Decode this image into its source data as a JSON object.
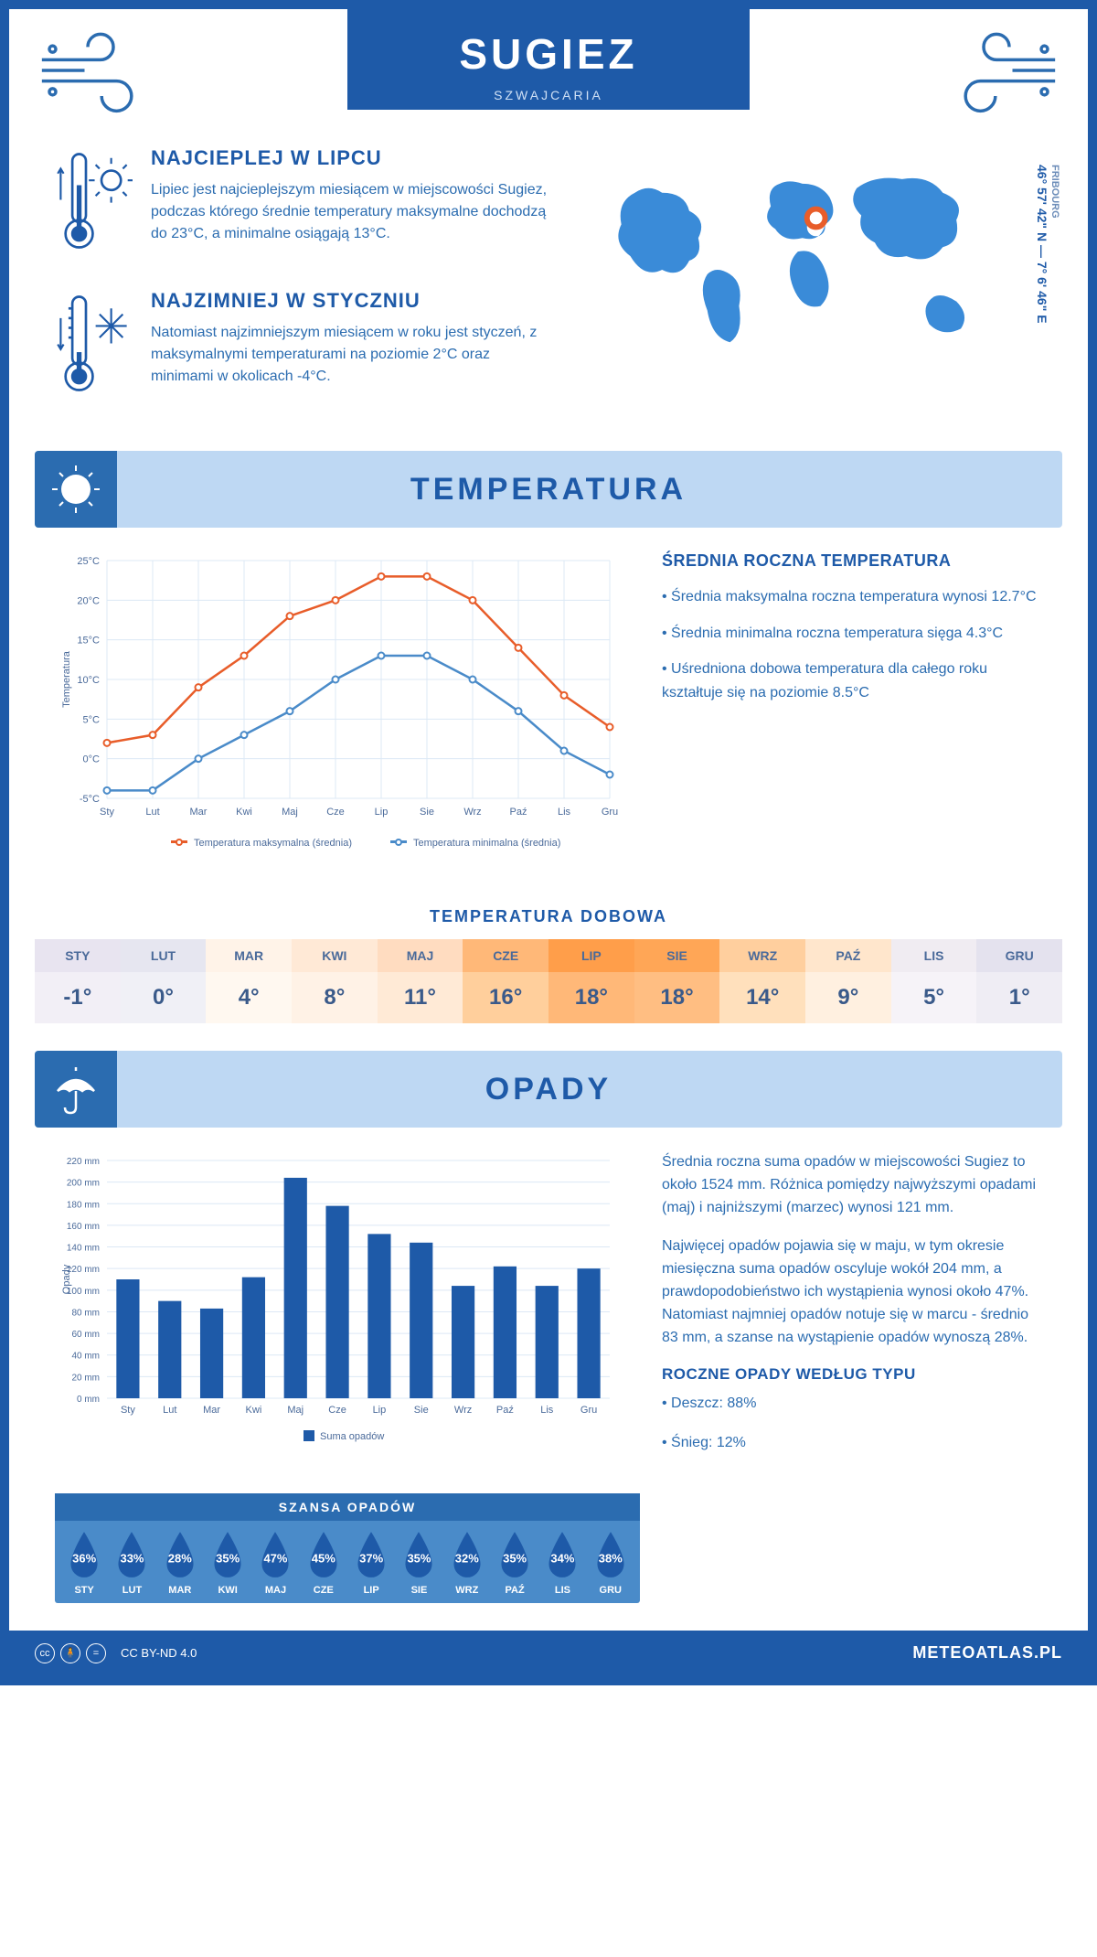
{
  "header": {
    "city": "SUGIEZ",
    "country": "SZWAJCARIA"
  },
  "coords": {
    "region": "FRIBOURG",
    "text": "46° 57' 42\" N — 7° 6' 46\" E"
  },
  "intro": {
    "warm": {
      "title": "NAJCIEPLEJ W LIPCU",
      "text": "Lipiec jest najcieplejszym miesiącem w miejscowości Sugiez, podczas którego średnie temperatury maksymalne dochodzą do 23°C, a minimalne osiągają 13°C."
    },
    "cold": {
      "title": "NAJZIMNIEJ W STYCZNIU",
      "text": "Natomiast najzimniejszym miesiącem w roku jest styczeń, z maksymalnymi temperaturami na poziomie 2°C oraz minimami w okolicach -4°C."
    }
  },
  "sections": {
    "temp": "TEMPERATURA",
    "precip": "OPADY"
  },
  "temp_chart": {
    "type": "line",
    "months": [
      "Sty",
      "Lut",
      "Mar",
      "Kwi",
      "Maj",
      "Cze",
      "Lip",
      "Sie",
      "Wrz",
      "Paź",
      "Lis",
      "Gru"
    ],
    "max_series": [
      2,
      3,
      9,
      13,
      18,
      20,
      23,
      23,
      20,
      14,
      8,
      4
    ],
    "min_series": [
      -4,
      -4,
      0,
      3,
      6,
      10,
      13,
      13,
      10,
      6,
      1,
      -2
    ],
    "ylim": [
      -5,
      25
    ],
    "ytick_step": 5,
    "ylabel": "Temperatura",
    "legend_max": "Temperatura maksymalna (średnia)",
    "legend_min": "Temperatura minimalna (średnia)",
    "color_max": "#e85d2a",
    "color_min": "#4a8bc9",
    "grid_color": "#dce8f5",
    "axis_color": "#4a6a9a",
    "label_fontsize": 11
  },
  "temp_side": {
    "title": "ŚREDNIA ROCZNA TEMPERATURA",
    "items": [
      "• Średnia maksymalna roczna temperatura wynosi 12.7°C",
      "• Średnia minimalna roczna temperatura sięga 4.3°C",
      "• Uśredniona dobowa temperatura dla całego roku kształtuje się na poziomie 8.5°C"
    ]
  },
  "daily": {
    "title": "TEMPERATURA DOBOWA",
    "months": [
      "STY",
      "LUT",
      "MAR",
      "KWI",
      "MAJ",
      "CZE",
      "LIP",
      "SIE",
      "WRZ",
      "PAŹ",
      "LIS",
      "GRU"
    ],
    "values": [
      "-1°",
      "0°",
      "4°",
      "8°",
      "11°",
      "16°",
      "18°",
      "18°",
      "14°",
      "9°",
      "5°",
      "1°"
    ],
    "bg_top": [
      "#e8e4f0",
      "#e6e6f0",
      "#fff3e8",
      "#ffe9d6",
      "#ffdcc0",
      "#ffb878",
      "#ff9e4a",
      "#ffa656",
      "#ffcf9e",
      "#ffe6cc",
      "#f0ecf2",
      "#e4e2ee"
    ],
    "bg_bot": [
      "#f2eff6",
      "#f0f0f6",
      "#fff8f0",
      "#fff2e6",
      "#ffead6",
      "#ffcf9c",
      "#ffb878",
      "#ffbe82",
      "#ffe0bc",
      "#fff0e0",
      "#f6f3f8",
      "#efedf4"
    ]
  },
  "precip_chart": {
    "type": "bar",
    "months": [
      "Sty",
      "Lut",
      "Mar",
      "Kwi",
      "Maj",
      "Cze",
      "Lip",
      "Sie",
      "Wrz",
      "Paź",
      "Lis",
      "Gru"
    ],
    "values": [
      110,
      90,
      83,
      112,
      204,
      178,
      152,
      144,
      104,
      122,
      104,
      120
    ],
    "ylim": [
      0,
      220
    ],
    "ytick_step": 20,
    "ylabel": "Opady",
    "bar_color": "#1e5aa8",
    "legend": "Suma opadów",
    "grid_color": "#dce8f5",
    "bar_width": 0.55
  },
  "precip_side": {
    "para1": "Średnia roczna suma opadów w miejscowości Sugiez to około 1524 mm. Różnica pomiędzy najwyższymi opadami (maj) i najniższymi (marzec) wynosi 121 mm.",
    "para2": "Najwięcej opadów pojawia się w maju, w tym okresie miesięczna suma opadów oscyluje wokół 204 mm, a prawdopodobieństwo ich wystąpienia wynosi około 47%. Natomiast najmniej opadów notuje się w marcu - średnio 83 mm, a szanse na wystąpienie opadów wynoszą 28%.",
    "type_title": "ROCZNE OPADY WEDŁUG TYPU",
    "types": [
      "• Deszcz: 88%",
      "• Śnieg: 12%"
    ]
  },
  "chance": {
    "title": "SZANSA OPADÓW",
    "months": [
      "STY",
      "LUT",
      "MAR",
      "KWI",
      "MAJ",
      "CZE",
      "LIP",
      "SIE",
      "WRZ",
      "PAŹ",
      "LIS",
      "GRU"
    ],
    "values": [
      "36%",
      "33%",
      "28%",
      "35%",
      "47%",
      "45%",
      "37%",
      "35%",
      "32%",
      "35%",
      "34%",
      "38%"
    ],
    "drop_fill": "#1e5aa8"
  },
  "footer": {
    "license": "CC BY-ND 4.0",
    "site": "METEOATLAS.PL"
  }
}
